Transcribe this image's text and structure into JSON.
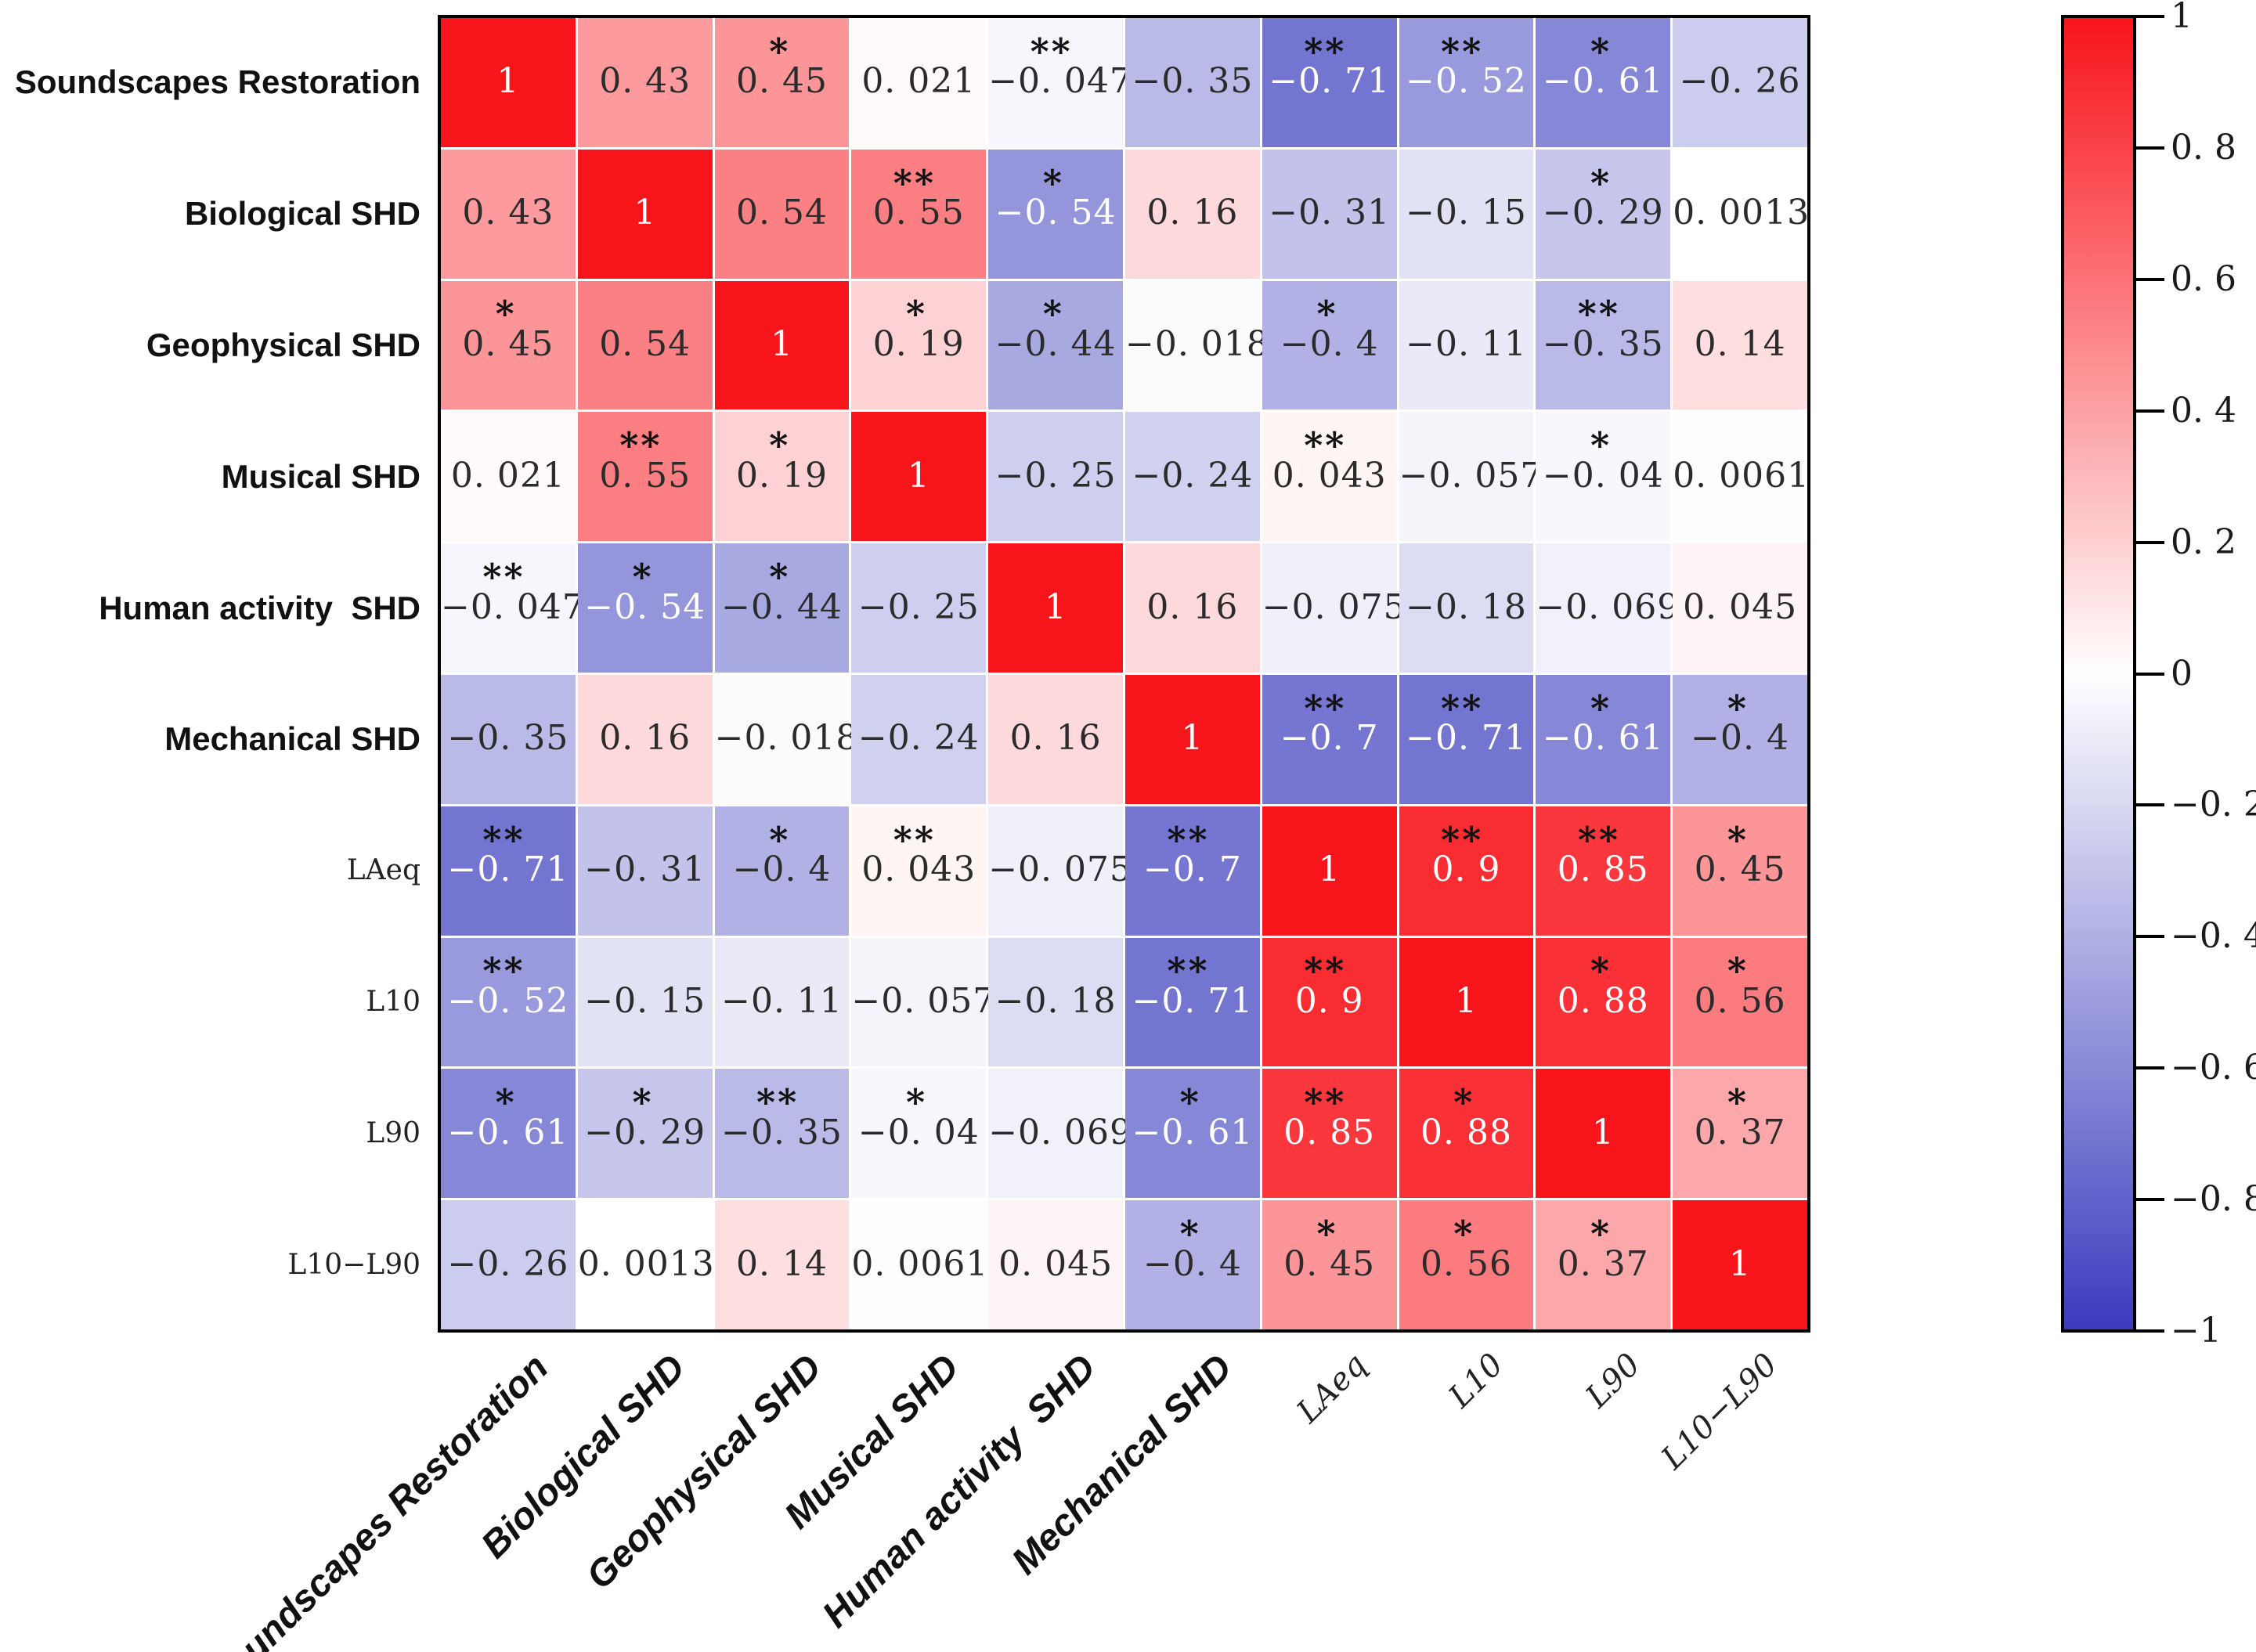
{
  "chart_data": {
    "type": "heatmap",
    "title": "",
    "variables": [
      "Soundscapes Restoration",
      "Biological SHD",
      "Geophysical SHD",
      "Musical SHD",
      "Human activity  SHD",
      "Mechanical SHD",
      "LAeq",
      "L10",
      "L90",
      "L10−L90"
    ],
    "label_styles": [
      "sans",
      "sans",
      "sans",
      "sans",
      "sans",
      "sans",
      "serif",
      "serif",
      "serif",
      "serif"
    ],
    "values": [
      [
        1,
        0.43,
        0.45,
        0.021,
        -0.047,
        -0.35,
        -0.71,
        -0.52,
        -0.61,
        -0.26
      ],
      [
        0.43,
        1,
        0.54,
        0.55,
        -0.54,
        0.16,
        -0.31,
        -0.15,
        -0.29,
        0.0013
      ],
      [
        0.45,
        0.54,
        1,
        0.19,
        -0.44,
        -0.018,
        -0.4,
        -0.11,
        -0.35,
        0.14
      ],
      [
        0.021,
        0.55,
        0.19,
        1,
        -0.25,
        -0.24,
        0.043,
        -0.057,
        -0.04,
        0.0061
      ],
      [
        -0.047,
        -0.54,
        -0.44,
        -0.25,
        1,
        0.16,
        -0.075,
        -0.18,
        -0.069,
        0.045
      ],
      [
        -0.35,
        0.16,
        -0.018,
        -0.24,
        0.16,
        1,
        -0.7,
        -0.71,
        -0.61,
        -0.4
      ],
      [
        -0.71,
        -0.31,
        -0.4,
        0.043,
        -0.075,
        -0.7,
        1,
        0.9,
        0.85,
        0.45
      ],
      [
        -0.52,
        -0.15,
        -0.11,
        -0.057,
        -0.18,
        -0.71,
        0.9,
        1,
        0.88,
        0.56
      ],
      [
        -0.61,
        -0.29,
        -0.35,
        -0.04,
        -0.069,
        -0.61,
        0.85,
        0.88,
        1,
        0.37
      ],
      [
        -0.26,
        0.0013,
        0.14,
        0.0061,
        0.045,
        -0.4,
        0.45,
        0.56,
        0.37,
        1
      ]
    ],
    "display_values": [
      [
        "1",
        "0. 43",
        "0. 45",
        "0. 021",
        "−0. 047",
        "−0. 35",
        "−0. 71",
        "−0. 52",
        "−0. 61",
        "−0. 26"
      ],
      [
        "0. 43",
        "1",
        "0. 54",
        "0. 55",
        "−0. 54",
        "0. 16",
        "−0. 31",
        "−0. 15",
        "−0. 29",
        "0. 0013"
      ],
      [
        "0. 45",
        "0. 54",
        "1",
        "0. 19",
        "−0. 44",
        "−0. 018",
        "−0. 4",
        "−0. 11",
        "−0. 35",
        "0. 14"
      ],
      [
        "0. 021",
        "0. 55",
        "0. 19",
        "1",
        "−0. 25",
        "−0. 24",
        "0. 043",
        "−0. 057",
        "−0. 04",
        "0. 0061"
      ],
      [
        "−0. 047",
        "−0. 54",
        "−0. 44",
        "−0. 25",
        "1",
        "0. 16",
        "−0. 075",
        "−0. 18",
        "−0. 069",
        "0. 045"
      ],
      [
        "−0. 35",
        "0. 16",
        "−0. 018",
        "−0. 24",
        "0. 16",
        "1",
        "−0. 7",
        "−0. 71",
        "−0. 61",
        "−0. 4"
      ],
      [
        "−0. 71",
        "−0. 31",
        "−0. 4",
        "0. 043",
        "−0. 075",
        "−0. 7",
        "1",
        "0. 9",
        "0. 85",
        "0. 45"
      ],
      [
        "−0. 52",
        "−0. 15",
        "−0. 11",
        "−0. 057",
        "−0. 18",
        "−0. 71",
        "0. 9",
        "1",
        "0. 88",
        "0. 56"
      ],
      [
        "−0. 61",
        "−0. 29",
        "−0. 35",
        "−0. 04",
        "−0. 069",
        "−0. 61",
        "0. 85",
        "0. 88",
        "1",
        "0. 37"
      ],
      [
        "−0. 26",
        "0. 0013",
        "0. 14",
        "0. 0061",
        "0. 045",
        "−0. 4",
        "0. 45",
        "0. 56",
        "0. 37",
        "1"
      ]
    ],
    "significance": [
      [
        "",
        "",
        "*",
        "",
        "**",
        "",
        "**",
        "**",
        "*",
        ""
      ],
      [
        "",
        "",
        "",
        "**",
        "*",
        "",
        "",
        "",
        "*",
        ""
      ],
      [
        "*",
        "",
        "",
        "*",
        "*",
        "",
        "*",
        "",
        "**",
        ""
      ],
      [
        "",
        "**",
        "*",
        "",
        "",
        "",
        "**",
        "",
        "*",
        ""
      ],
      [
        "**",
        "*",
        "*",
        "",
        "",
        "",
        "",
        "",
        "",
        ""
      ],
      [
        "",
        "",
        "",
        "",
        "",
        "",
        "**",
        "**",
        "*",
        "*"
      ],
      [
        "**",
        "",
        "*",
        "**",
        "",
        "**",
        "",
        "**",
        "**",
        "*"
      ],
      [
        "**",
        "",
        "",
        "",
        "",
        "**",
        "**",
        "",
        "*",
        "*"
      ],
      [
        "*",
        "*",
        "**",
        "*",
        "",
        "*",
        "**",
        "*",
        "",
        "*"
      ],
      [
        "",
        "",
        "",
        "",
        "",
        "*",
        "*",
        "*",
        "*",
        ""
      ]
    ],
    "value_range": [
      -1,
      1
    ],
    "colormap": {
      "positive_end": "#f8141b",
      "zero": "#ffffff",
      "negative_end": "#3b3bbe"
    },
    "text_colors": {
      "dark": "#2b2b2b",
      "light": "#ffffff",
      "significance": "#111111"
    },
    "colorbar": {
      "position": "right",
      "ticks": [
        1,
        0.8,
        0.6,
        0.4,
        0.2,
        0,
        -0.2,
        -0.4,
        -0.6,
        -0.8,
        -1
      ],
      "tick_labels": [
        "1",
        "0. 8",
        "0. 6",
        "0. 4",
        "0. 2",
        "0",
        "−0. 2",
        "−0. 4",
        "−0. 6",
        "−0. 8",
        "−1"
      ]
    },
    "layout_hints": {
      "bottom_labels_rotation_deg": 45,
      "grid_lines": "white",
      "outer_border": "black"
    }
  }
}
